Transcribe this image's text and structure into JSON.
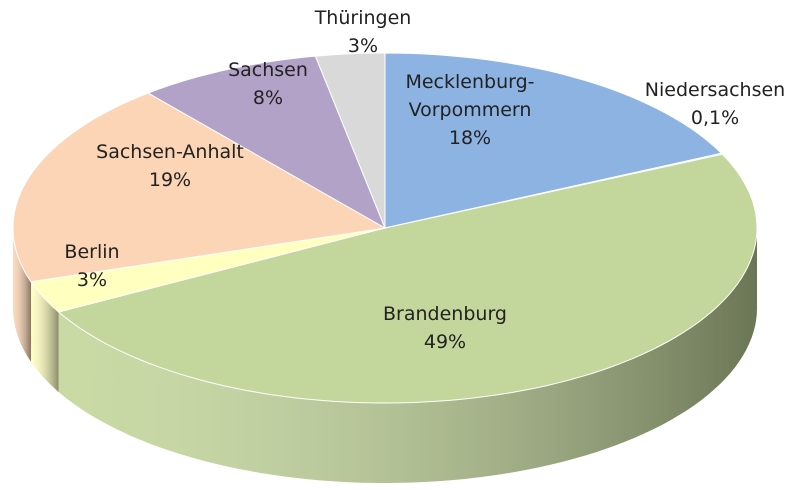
{
  "chart_data": {
    "type": "pie",
    "categories": [
      "Mecklenburg-Vorpommern",
      "Niedersachsen",
      "Brandenburg",
      "Berlin",
      "Sachsen-Anhalt",
      "Sachsen",
      "Thüringen"
    ],
    "values": [
      18,
      0.1,
      49,
      3,
      19,
      8,
      3
    ],
    "value_labels": [
      "18%",
      "0,1%",
      "49%",
      "3%",
      "19%",
      "8%",
      "3%"
    ],
    "colors": [
      "#8db3e2",
      "#9bc4c0",
      "#c3d69b",
      "#ffffc0",
      "#fbd5b5",
      "#b3a2c7",
      "#d9d9d9"
    ]
  }
}
